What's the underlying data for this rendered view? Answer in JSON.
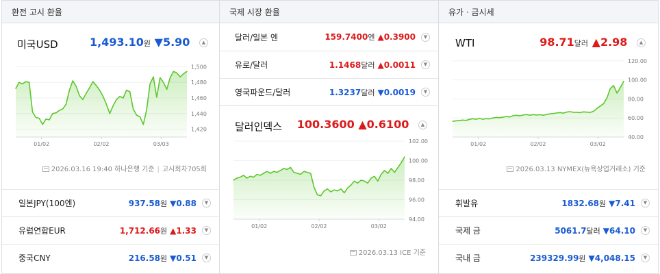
{
  "col1": {
    "header": "환전 고시 환율",
    "main": {
      "name": "미국USD",
      "value": "1,493.10",
      "unit": "원",
      "arrow": "▼",
      "change": "5.90"
    },
    "y_ticks": [
      "1,500",
      "1,480",
      "1,460",
      "1,440",
      "1,420"
    ],
    "x_ticks": [
      "01/02",
      "02/02",
      "03/03"
    ],
    "footer_source": "2026.03.16 19:40 하나은행 기준",
    "footer_count": "고시회차705회",
    "rows": [
      {
        "name": "일본JPY(100엔)",
        "value": "937.58",
        "unit": "원",
        "arrow": "▼",
        "change": "0.88",
        "dir": "down"
      },
      {
        "name": "유럽연합EUR",
        "value": "1,712.66",
        "unit": "원",
        "arrow": "▲",
        "change": "1.33",
        "dir": "up"
      },
      {
        "name": "중국CNY",
        "value": "216.58",
        "unit": "원",
        "arrow": "▼",
        "change": "0.51",
        "dir": "down"
      }
    ]
  },
  "col2": {
    "header": "국제 시장 환율",
    "rows": [
      {
        "name": "달러/일본 엔",
        "value": "159.7400",
        "unit": "엔",
        "arrow": "▲",
        "change": "0.3900",
        "dir": "up"
      },
      {
        "name": "유로/달러",
        "value": "1.1468",
        "unit": "달러",
        "arrow": "▲",
        "change": "0.0011",
        "dir": "up"
      },
      {
        "name": "영국파운드/달러",
        "value": "1.3237",
        "unit": "달러",
        "arrow": "▼",
        "change": "0.0019",
        "dir": "down"
      }
    ],
    "main": {
      "name": "달러인덱스",
      "value": "100.3600",
      "arrow": "▲",
      "change": "0.6100"
    },
    "y_ticks": [
      "102.00",
      "100.00",
      "98.00",
      "96.00",
      "94.00"
    ],
    "x_ticks": [
      "01/02",
      "02/02",
      "03/02"
    ],
    "footer_source": "2026.03.13 ICE 기준"
  },
  "col3": {
    "header": "유가 · 금시세",
    "main": {
      "name": "WTI",
      "value": "98.71",
      "unit": "달러",
      "arrow": "▲",
      "change": "2.98"
    },
    "y_ticks": [
      "120.00",
      "100.00",
      "80.00",
      "60.00",
      "40.00"
    ],
    "x_ticks": [
      "01/02",
      "02/02",
      "03/02"
    ],
    "footer_source": "2026.03.13 NYMEX(뉴욕상업거래소) 기준",
    "rows": [
      {
        "name": "휘발유",
        "value": "1832.68",
        "unit": "원",
        "arrow": "▼",
        "change": "7.41",
        "dir": "down"
      },
      {
        "name": "국제 금",
        "value": "5061.7",
        "unit": "달러",
        "arrow": "▼",
        "change": "64.10",
        "dir": "down"
      },
      {
        "name": "국내 금",
        "value": "239329.99",
        "unit": "원",
        "arrow": "▼",
        "change": "4,048.15",
        "dir": "down"
      }
    ]
  },
  "chart_data": [
    {
      "type": "area",
      "title": "미국USD",
      "ylim": [
        1410,
        1510
      ],
      "x_ticks": [
        "01/02",
        "02/02",
        "03/03"
      ],
      "values": [
        1472,
        1480,
        1478,
        1481,
        1480,
        1442,
        1435,
        1434,
        1426,
        1433,
        1432,
        1440,
        1441,
        1444,
        1446,
        1452,
        1470,
        1482,
        1475,
        1463,
        1458,
        1466,
        1473,
        1481,
        1476,
        1470,
        1462,
        1452,
        1440,
        1450,
        1458,
        1462,
        1460,
        1470,
        1468,
        1446,
        1438,
        1436,
        1426,
        1445,
        1478,
        1487,
        1461,
        1486,
        1480,
        1471,
        1486,
        1494,
        1492,
        1487,
        1491,
        1494
      ]
    },
    {
      "type": "area",
      "title": "달러인덱스",
      "ylim": [
        94,
        102
      ],
      "x_ticks": [
        "01/02",
        "02/02",
        "03/02"
      ],
      "values": [
        98.0,
        98.2,
        98.3,
        98.5,
        98.2,
        98.4,
        98.3,
        98.6,
        98.5,
        98.7,
        98.9,
        98.7,
        98.9,
        98.8,
        99.0,
        99.2,
        99.1,
        99.3,
        98.8,
        98.7,
        98.6,
        98.9,
        98.8,
        98.7,
        97.3,
        96.5,
        96.4,
        96.9,
        97.1,
        96.8,
        97.0,
        96.9,
        97.1,
        96.7,
        97.2,
        97.5,
        97.9,
        97.7,
        98.0,
        97.9,
        97.7,
        98.2,
        98.4,
        97.9,
        98.6,
        99.0,
        98.7,
        99.2,
        98.8,
        99.3,
        99.8,
        100.4
      ]
    },
    {
      "type": "area",
      "title": "WTI",
      "ylim": [
        40,
        122
      ],
      "x_ticks": [
        "01/02",
        "02/02",
        "03/02"
      ],
      "values": [
        56.5,
        57.0,
        57.3,
        57.8,
        57.4,
        58.5,
        59.2,
        58.6,
        59.5,
        58.6,
        59.3,
        59.0,
        60.0,
        60.6,
        60.3,
        60.8,
        61.5,
        61.1,
        62.3,
        62.8,
        62.2,
        63.0,
        63.6,
        62.9,
        63.5,
        63.1,
        63.4,
        62.9,
        63.6,
        64.3,
        64.7,
        65.2,
        65.7,
        65.0,
        66.2,
        66.6,
        65.9,
        66.0,
        65.6,
        66.4,
        66.1,
        65.8,
        67.0,
        70.0,
        72.5,
        75.0,
        81.0,
        91.0,
        94.0,
        86.0,
        92.0,
        98.71
      ]
    }
  ]
}
